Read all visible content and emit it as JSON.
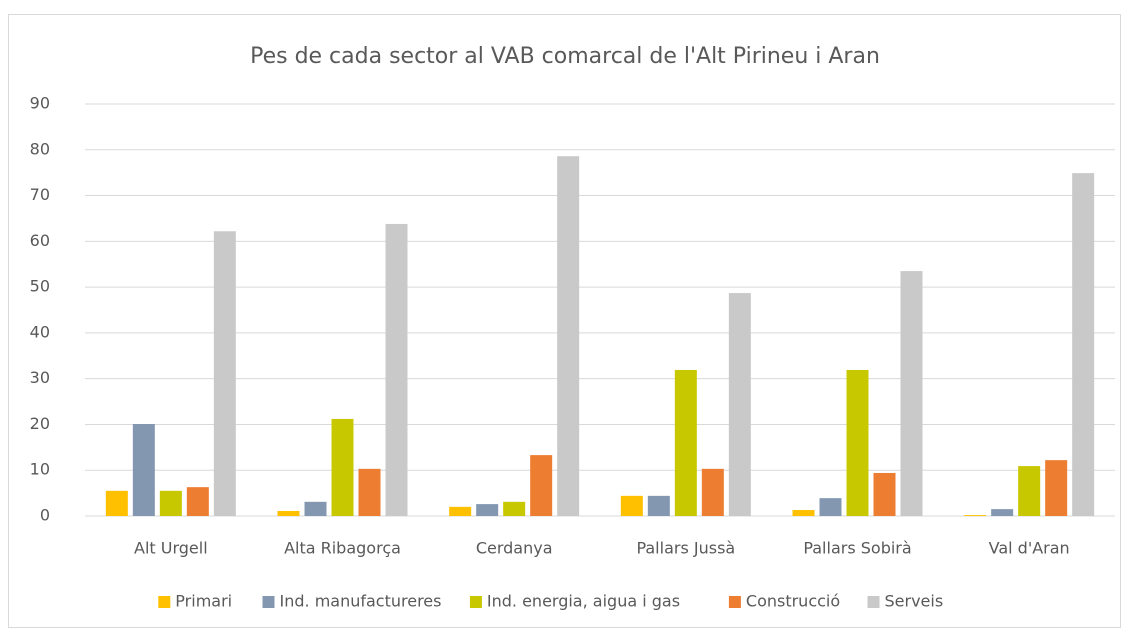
{
  "chart_data": {
    "type": "bar",
    "title": "Pes de cada sector al VAB comarcal de l'Alt Pirineu i Aran",
    "categories": [
      "Alt Urgell",
      "Alta Ribagorça",
      "Cerdanya",
      "Pallars Jussà",
      "Pallars Sobirà",
      "Val d'Aran"
    ],
    "series": [
      {
        "name": "Primari",
        "color": "#ffc000",
        "values": [
          5.5,
          1.1,
          2.0,
          4.4,
          1.3,
          0.2
        ]
      },
      {
        "name": "Ind. manufactureres",
        "color": "#8497b0",
        "values": [
          20.1,
          3.1,
          2.6,
          4.4,
          3.9,
          1.5
        ]
      },
      {
        "name": "Ind. energia, aigua i gas",
        "color": "#c8c800",
        "values": [
          5.5,
          21.2,
          3.1,
          31.9,
          31.9,
          10.9
        ]
      },
      {
        "name": "Construcció",
        "color": "#ed7d31",
        "values": [
          6.3,
          10.3,
          13.3,
          10.3,
          9.4,
          12.2
        ]
      },
      {
        "name": "Serveis",
        "color": "#c9c9c9",
        "values": [
          62.2,
          63.8,
          78.6,
          48.7,
          53.5,
          74.9
        ]
      }
    ],
    "ylim": [
      0,
      90
    ],
    "yticks": [
      0,
      10,
      20,
      30,
      40,
      50,
      60,
      70,
      80,
      90
    ],
    "grid": true,
    "legend": "bottom"
  }
}
